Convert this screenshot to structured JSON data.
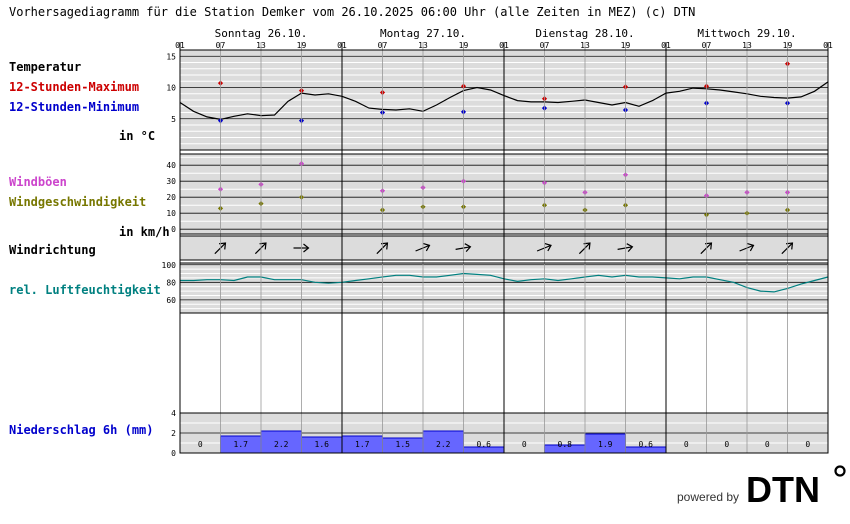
{
  "title": "Vorhersagediagramm für die Station Demker vom 26.10.2025 06:00 Uhr (alle Zeiten in MEZ)   (c) DTN",
  "days": [
    "Sonntag 26.10.",
    "Montag 27.10.",
    "Dienstag 28.10.",
    "Mittwoch 29.10."
  ],
  "hour_ticks": [
    "01",
    "07",
    "13",
    "19",
    "01",
    "07",
    "13",
    "19",
    "01",
    "07",
    "13",
    "19",
    "01",
    "07",
    "13",
    "19",
    "01"
  ],
  "labels": {
    "temperature": "Temperatur",
    "max": "12-Stunden-Maximum",
    "min": "12-Stunden-Minimum",
    "temp_unit": "in °C",
    "gusts": "Windböen",
    "wind_speed": "Windgeschwindigkeit",
    "wind_unit": "in km/h",
    "wind_direction": "Windrichtung",
    "humidity": "rel. Luftfeuchtigkeit",
    "precip": "Niederschlag 6h (mm)"
  },
  "colors": {
    "panel_bg": "#dcdcdc",
    "max": "#cc0000",
    "min": "#0000cc",
    "gust": "#cc44cc",
    "wind": "#777700",
    "humidity": "#008080",
    "precip_fill": "#6666ff",
    "precip_edge": "#0000cc"
  },
  "chart_data": [
    {
      "name": "temperature",
      "type": "line",
      "ylim": [
        0,
        16
      ],
      "yticks": [
        5,
        10,
        15
      ],
      "x_hours": [
        0,
        2,
        4,
        6,
        8,
        10,
        12,
        14,
        16,
        18,
        20,
        22,
        24,
        26,
        28,
        30,
        32,
        34,
        36,
        38,
        40,
        42,
        44,
        46,
        48,
        50,
        52,
        54,
        56,
        58,
        60,
        62,
        64,
        66,
        68,
        70,
        72,
        74,
        76,
        78,
        80,
        82,
        84,
        86,
        88,
        90,
        92,
        94,
        96
      ],
      "values": [
        7.6,
        6.2,
        5.3,
        4.9,
        5.4,
        5.8,
        5.5,
        5.6,
        7.8,
        9.1,
        8.8,
        9.0,
        8.6,
        7.8,
        6.7,
        6.5,
        6.4,
        6.6,
        6.2,
        7.2,
        8.4,
        9.5,
        10.0,
        9.6,
        8.7,
        7.9,
        7.7,
        7.7,
        7.6,
        7.8,
        8.0,
        7.6,
        7.2,
        7.6,
        7.0,
        7.9,
        9.1,
        9.4,
        9.9,
        9.8,
        9.6,
        9.3,
        9.0,
        8.6,
        8.4,
        8.3,
        8.5,
        9.4,
        10.9
      ],
      "max_points": [
        {
          "hour": 6,
          "value": 10.7
        },
        {
          "hour": 18,
          "value": 9.5
        },
        {
          "hour": 30,
          "value": 9.2
        },
        {
          "hour": 42,
          "value": 10.2
        },
        {
          "hour": 54,
          "value": 8.2
        },
        {
          "hour": 66,
          "value": 10.1
        },
        {
          "hour": 78,
          "value": 10.2
        },
        {
          "hour": 90,
          "value": 13.8
        }
      ],
      "min_points": [
        {
          "hour": 6,
          "value": 4.7
        },
        {
          "hour": 18,
          "value": 4.7
        },
        {
          "hour": 30,
          "value": 6.0
        },
        {
          "hour": 42,
          "value": 6.1
        },
        {
          "hour": 54,
          "value": 6.7
        },
        {
          "hour": 66,
          "value": 6.4
        },
        {
          "hour": 78,
          "value": 7.5
        },
        {
          "hour": 90,
          "value": 7.5
        }
      ]
    },
    {
      "name": "wind",
      "type": "scatter",
      "ylim": [
        -3,
        47
      ],
      "yticks": [
        0,
        10,
        20,
        30,
        40
      ],
      "gusts": [
        {
          "hour": 6,
          "value": 25
        },
        {
          "hour": 12,
          "value": 28
        },
        {
          "hour": 18,
          "value": 41
        },
        {
          "hour": 30,
          "value": 24
        },
        {
          "hour": 36,
          "value": 26
        },
        {
          "hour": 42,
          "value": 30
        },
        {
          "hour": 54,
          "value": 29
        },
        {
          "hour": 60,
          "value": 23
        },
        {
          "hour": 66,
          "value": 34
        },
        {
          "hour": 78,
          "value": 21
        },
        {
          "hour": 84,
          "value": 23
        },
        {
          "hour": 90,
          "value": 23
        }
      ],
      "speed": [
        {
          "hour": 6,
          "value": 13
        },
        {
          "hour": 12,
          "value": 16
        },
        {
          "hour": 18,
          "value": 20
        },
        {
          "hour": 30,
          "value": 12
        },
        {
          "hour": 36,
          "value": 14
        },
        {
          "hour": 42,
          "value": 14
        },
        {
          "hour": 54,
          "value": 15
        },
        {
          "hour": 60,
          "value": 12
        },
        {
          "hour": 66,
          "value": 15
        },
        {
          "hour": 78,
          "value": 9
        },
        {
          "hour": 84,
          "value": 10
        },
        {
          "hour": 90,
          "value": 12
        }
      ]
    },
    {
      "name": "wind_direction",
      "type": "scatter",
      "arrows": [
        {
          "hour": 6,
          "angle": -45
        },
        {
          "hour": 12,
          "angle": -45
        },
        {
          "hour": 18,
          "angle": 0
        },
        {
          "hour": 30,
          "angle": -45
        },
        {
          "hour": 36,
          "angle": -22
        },
        {
          "hour": 42,
          "angle": -10
        },
        {
          "hour": 54,
          "angle": -22
        },
        {
          "hour": 60,
          "angle": -45
        },
        {
          "hour": 66,
          "angle": -10
        },
        {
          "hour": 78,
          "angle": -45
        },
        {
          "hour": 84,
          "angle": -22
        },
        {
          "hour": 90,
          "angle": -45
        }
      ]
    },
    {
      "name": "humidity",
      "type": "line",
      "ylim": [
        45,
        102
      ],
      "yticks": [
        60,
        80,
        100
      ],
      "x_hours": [
        0,
        2,
        4,
        6,
        8,
        10,
        12,
        14,
        16,
        18,
        20,
        22,
        24,
        26,
        28,
        30,
        32,
        34,
        36,
        38,
        40,
        42,
        44,
        46,
        48,
        50,
        52,
        54,
        56,
        58,
        60,
        62,
        64,
        66,
        68,
        70,
        72,
        74,
        76,
        78,
        80,
        82,
        84,
        86,
        88,
        90,
        92,
        94,
        96
      ],
      "values": [
        82,
        82,
        83,
        83,
        82,
        86,
        86,
        83,
        83,
        83,
        80,
        79,
        80,
        82,
        84,
        86,
        88,
        88,
        86,
        86,
        88,
        90,
        89,
        88,
        84,
        81,
        83,
        84,
        82,
        84,
        86,
        88,
        86,
        88,
        86,
        86,
        85,
        84,
        86,
        86,
        83,
        80,
        74,
        70,
        69,
        73,
        78,
        82,
        86
      ]
    },
    {
      "name": "precipitation",
      "type": "bar",
      "ylim": [
        0,
        4
      ],
      "yticks": [
        0,
        2,
        4
      ],
      "categories": [
        "01-07",
        "07-13",
        "13-19",
        "19-01",
        "01-07",
        "07-13",
        "13-19",
        "19-01",
        "01-07",
        "07-13",
        "13-19",
        "19-01",
        "01-07",
        "07-13",
        "13-19",
        "19-01"
      ],
      "values": [
        0,
        1.7,
        2.2,
        1.6,
        1.7,
        1.5,
        2.2,
        0.6,
        0,
        0.8,
        1.9,
        0.6,
        0,
        0,
        0,
        0
      ],
      "labels": [
        "0",
        "1.7",
        "2.2",
        "1.6",
        "1.7",
        "1.5",
        "2.2",
        "0.6",
        "0",
        "0.8",
        "1.9",
        "0.6",
        "0",
        "0",
        "0",
        "0"
      ]
    }
  ],
  "footer": {
    "powered_by": "powered by",
    "brand": "DTN"
  }
}
